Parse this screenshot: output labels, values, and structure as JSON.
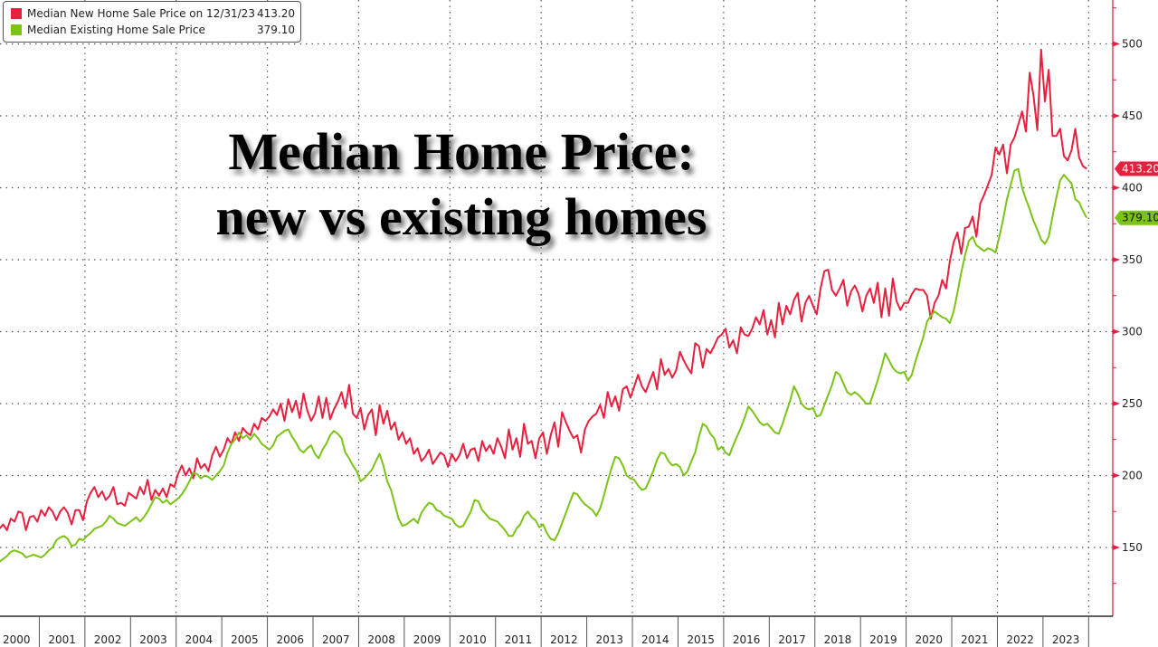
{
  "chart_data": {
    "type": "line",
    "title": "Median Home Price: new vs existing homes",
    "title_lines": [
      "Median Home Price:",
      "new vs existing homes"
    ],
    "xlabel": "",
    "ylabel": "",
    "x_tick_labels": [
      "2000",
      "2001",
      "2002",
      "2003",
      "2004",
      "2005",
      "2006",
      "2007",
      "2008",
      "2009",
      "2010",
      "2011",
      "2012",
      "2013",
      "2014",
      "2015",
      "2016",
      "2017",
      "2018",
      "2019",
      "2020",
      "2021",
      "2022",
      "2023"
    ],
    "x_range": [
      2000,
      2024
    ],
    "ylim": [
      100,
      530
    ],
    "y_ticks": [
      150,
      200,
      250,
      300,
      350,
      400,
      450,
      500
    ],
    "y_axis_side": "right",
    "grid": true,
    "legend_position": "top-left",
    "series": [
      {
        "name": "Median New Home Sale Price on 12/31/23",
        "color": "#e8203f",
        "last_value_label": "413.20",
        "legend_value": "413.20",
        "frequency": "monthly",
        "start": 2000.0,
        "values": [
          165,
          163,
          166,
          162,
          170,
          168,
          175,
          174,
          162,
          171,
          172,
          168,
          176,
          172,
          178,
          175,
          169,
          175,
          178,
          174,
          166,
          176,
          176,
          169,
          182,
          188,
          192,
          185,
          189,
          183,
          186,
          192,
          180,
          181,
          179,
          188,
          186,
          184,
          192,
          187,
          197,
          183,
          190,
          186,
          191,
          185,
          194,
          192,
          201,
          207,
          200,
          205,
          198,
          212,
          205,
          208,
          203,
          214,
          220,
          213,
          218,
          226,
          222,
          230,
          224,
          233,
          230,
          228,
          236,
          232,
          240,
          238,
          241,
          246,
          242,
          250,
          238,
          253,
          244,
          252,
          240,
          257,
          245,
          238,
          243,
          255,
          240,
          254,
          239,
          246,
          251,
          258,
          247,
          263,
          243,
          240,
          247,
          232,
          242,
          246,
          228,
          249,
          236,
          245,
          232,
          237,
          225,
          230,
          222,
          226,
          215,
          219,
          210,
          213,
          218,
          208,
          212,
          216,
          214,
          206,
          215,
          210,
          214,
          222,
          212,
          218,
          219,
          210,
          224,
          217,
          221,
          215,
          226,
          220,
          212,
          232,
          218,
          226,
          213,
          236,
          222,
          224,
          212,
          226,
          230,
          215,
          228,
          237,
          220,
          244,
          237,
          231,
          226,
          228,
          216,
          232,
          238,
          241,
          243,
          249,
          240,
          258,
          248,
          255,
          245,
          260,
          262,
          254,
          262,
          270,
          262,
          258,
          265,
          272,
          260,
          281,
          270,
          274,
          268,
          273,
          286,
          280,
          275,
          271,
          292,
          290,
          275,
          288,
          285,
          290,
          296,
          298,
          302,
          289,
          294,
          285,
          303,
          298,
          297,
          302,
          310,
          305,
          315,
          298,
          308,
          296,
          320,
          305,
          318,
          312,
          322,
          327,
          307,
          320,
          325,
          318,
          312,
          330,
          342,
          343,
          329,
          325,
          330,
          336,
          318,
          328,
          332,
          326,
          314,
          325,
          330,
          320,
          334,
          310,
          330,
          311,
          337,
          321,
          315,
          320,
          320,
          326,
          330,
          329,
          329,
          325,
          309,
          320,
          325,
          336,
          330,
          349,
          362,
          369,
          354,
          372,
          373,
          380,
          366,
          389,
          395,
          402,
          409,
          428,
          423,
          430,
          410,
          430,
          435,
          444,
          453,
          439,
          480,
          464,
          440,
          496,
          460,
          482,
          436,
          436,
          441,
          422,
          419,
          426,
          441,
          421,
          415,
          413.2
        ]
      },
      {
        "name": "Median Existing Home Sale Price",
        "color": "#7cc317",
        "last_value_label": "379.10",
        "legend_value": "379.10",
        "frequency": "monthly",
        "start": 2000.0,
        "values": [
          138,
          140,
          142,
          144,
          147,
          148,
          147,
          146,
          143,
          144,
          145,
          144,
          143,
          145,
          148,
          150,
          155,
          157,
          158,
          156,
          151,
          152,
          156,
          155,
          158,
          160,
          163,
          164,
          165,
          168,
          172,
          170,
          167,
          166,
          165,
          167,
          169,
          171,
          168,
          171,
          175,
          180,
          185,
          184,
          181,
          183,
          180,
          182,
          184,
          187,
          191,
          196,
          202,
          201,
          198,
          200,
          199,
          197,
          200,
          203,
          207,
          216,
          222,
          225,
          230,
          226,
          228,
          225,
          229,
          226,
          222,
          220,
          218,
          221,
          227,
          229,
          231,
          232,
          227,
          223,
          218,
          216,
          219,
          221,
          215,
          212,
          218,
          222,
          228,
          231,
          229,
          226,
          216,
          212,
          207,
          203,
          196,
          198,
          201,
          204,
          210,
          215,
          207,
          196,
          190,
          180,
          170,
          165,
          166,
          168,
          170,
          167,
          174,
          178,
          181,
          180,
          176,
          175,
          172,
          171,
          170,
          166,
          164,
          165,
          170,
          175,
          183,
          182,
          176,
          173,
          170,
          169,
          168,
          165,
          162,
          158,
          158,
          163,
          166,
          172,
          175,
          171,
          169,
          164,
          166,
          160,
          156,
          155,
          160,
          167,
          174,
          181,
          188,
          187,
          183,
          180,
          178,
          176,
          172,
          177,
          186,
          196,
          205,
          213,
          212,
          207,
          200,
          198,
          197,
          193,
          190,
          191,
          197,
          203,
          211,
          216,
          215,
          210,
          207,
          208,
          206,
          200,
          203,
          210,
          216,
          227,
          236,
          234,
          229,
          226,
          218,
          220,
          216,
          214,
          221,
          227,
          233,
          240,
          248,
          245,
          241,
          237,
          235,
          236,
          233,
          230,
          229,
          236,
          244,
          252,
          262,
          257,
          250,
          247,
          246,
          247,
          241,
          242,
          249,
          256,
          263,
          272,
          270,
          264,
          258,
          256,
          258,
          256,
          253,
          250,
          250,
          258,
          266,
          275,
          285,
          280,
          275,
          272,
          271,
          272,
          266,
          270,
          280,
          288,
          296,
          307,
          311,
          314,
          312,
          310,
          309,
          306,
          314,
          327,
          341,
          353,
          363,
          366,
          360,
          358,
          356,
          358,
          357,
          355,
          366,
          378,
          392,
          402,
          412,
          413,
          400,
          392,
          385,
          377,
          371,
          364,
          361,
          366,
          380,
          393,
          405,
          409,
          406,
          403,
          392,
          390,
          384,
          379.1
        ]
      }
    ]
  },
  "legend": {
    "items": [
      {
        "label": "Median New Home Sale Price on 12/31/23",
        "value": "413.20",
        "color": "#e8203f"
      },
      {
        "label": "Median Existing Home Sale Price",
        "value": "379.10",
        "color": "#7cc317"
      }
    ]
  }
}
